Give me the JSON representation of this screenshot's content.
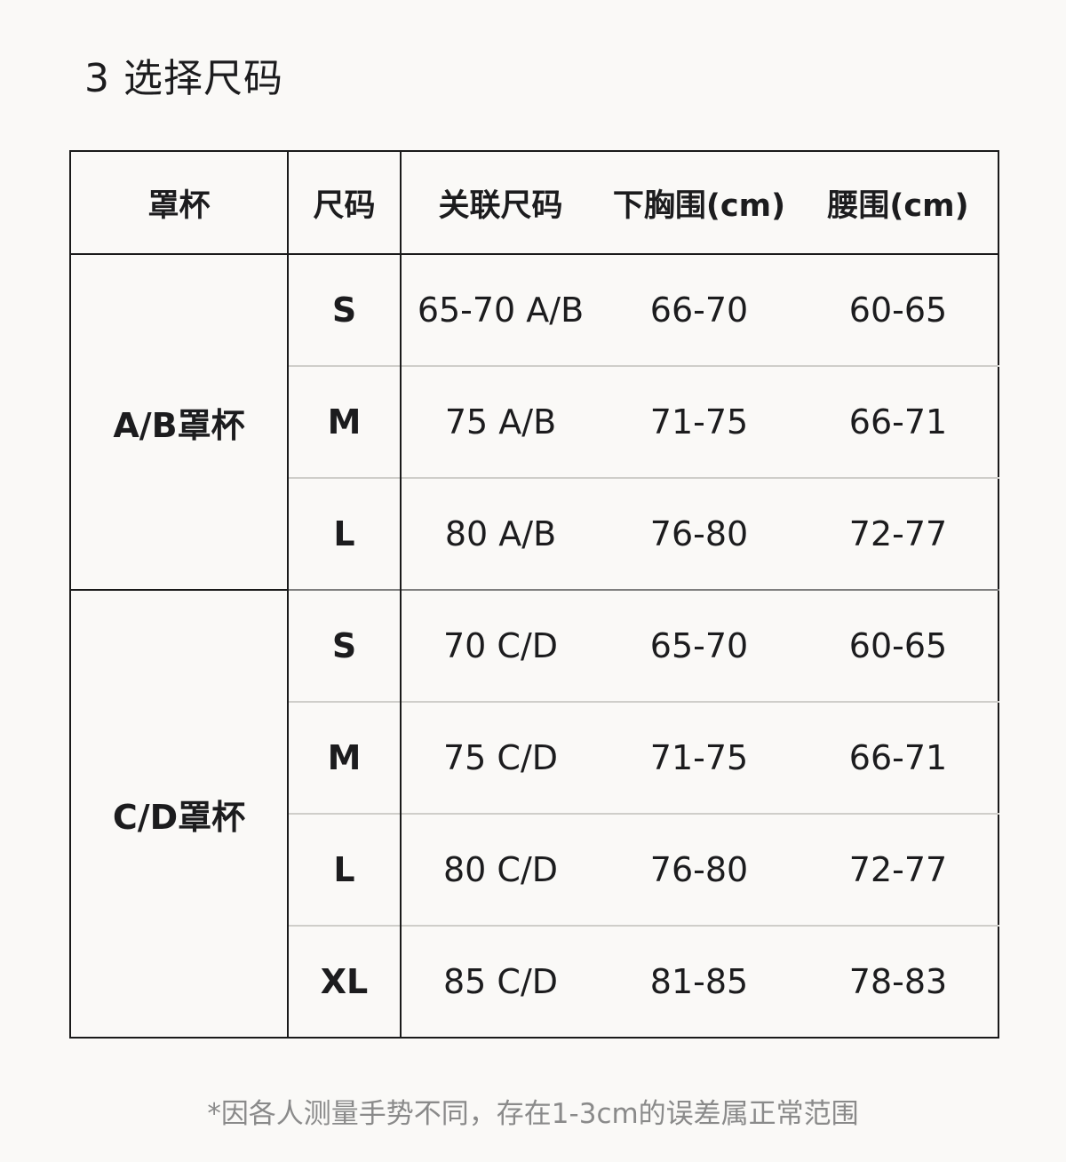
{
  "page": {
    "title": "3 选择尺码",
    "footnote": "*因各人测量手势不同，存在1-3cm的误差属正常范围"
  },
  "size_table": {
    "columns": [
      "罩杯",
      "尺码",
      "关联尺码",
      "下胸围(cm)",
      "腰围(cm)"
    ],
    "groups": [
      {
        "cup": "A/B罩杯",
        "rows": [
          {
            "size": "S",
            "related": "65-70 A/B",
            "underbust": "66-70",
            "waist": "60-65"
          },
          {
            "size": "M",
            "related": "75 A/B",
            "underbust": "71-75",
            "waist": "66-71"
          },
          {
            "size": "L",
            "related": "80 A/B",
            "underbust": "76-80",
            "waist": "72-77"
          }
        ]
      },
      {
        "cup": "C/D罩杯",
        "rows": [
          {
            "size": "S",
            "related": "70 C/D",
            "underbust": "65-70",
            "waist": "60-65"
          },
          {
            "size": "M",
            "related": "75 C/D",
            "underbust": "71-75",
            "waist": "66-71"
          },
          {
            "size": "L",
            "related": "80 C/D",
            "underbust": "76-80",
            "waist": "72-77"
          },
          {
            "size": "XL",
            "related": "85 C/D",
            "underbust": "81-85",
            "waist": "78-83"
          }
        ]
      }
    ]
  },
  "colors": {
    "background": "#faf9f7",
    "text": "#1c1c1e",
    "muted_text": "#8a8a8a",
    "border_strong": "#1a1a1a",
    "border_light": "#cfceca",
    "border_section": "#7f7f7f"
  }
}
